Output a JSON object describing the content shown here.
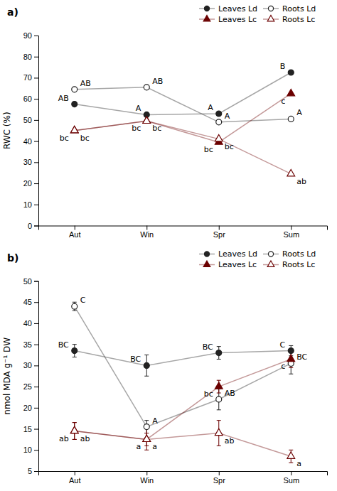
{
  "chart_data": [
    {
      "type": "line",
      "title": "a)",
      "y_label": "RWC (%)",
      "categories": [
        "Aut",
        "Win",
        "Spr",
        "Sum"
      ],
      "ylim": [
        0,
        90
      ],
      "yticks": [
        0,
        10,
        20,
        30,
        40,
        50,
        60,
        70,
        80,
        90
      ],
      "grid": false,
      "legend": "upper right",
      "series": [
        {
          "name": "Leaves Ld",
          "color": "#222222",
          "marker": "circle",
          "values": [
            57.5,
            52.5,
            53.0,
            72.5
          ],
          "labels": [
            "AB",
            "A",
            "A",
            "B"
          ]
        },
        {
          "name": "Roots Ld",
          "color": "#222222",
          "marker": "open-circle",
          "values": [
            64.5,
            65.5,
            49.0,
            50.5
          ],
          "labels": [
            "AB",
            "AB",
            "A",
            "A"
          ]
        },
        {
          "name": "Leaves Lc",
          "color": "#6B0000",
          "marker": "triangle",
          "values": [
            45.0,
            49.5,
            39.5,
            62.5
          ],
          "labels": [
            "bc",
            "bc",
            "bc",
            "c"
          ]
        },
        {
          "name": "Roots Lc",
          "color": "#6B0000",
          "marker": "open-triangle",
          "values": [
            45.0,
            49.5,
            41.0,
            24.5
          ],
          "labels": [
            "bc",
            "bc",
            "bc",
            "ab"
          ]
        }
      ]
    },
    {
      "type": "line",
      "title": "b)",
      "y_label": "nmol MDA g⁻¹ DW",
      "categories": [
        "Aut",
        "Win",
        "Spr",
        "Sum"
      ],
      "ylim": [
        5,
        50
      ],
      "yticks": [
        5,
        10,
        15,
        20,
        25,
        30,
        35,
        40,
        45,
        50
      ],
      "grid": false,
      "legend": "upper right",
      "series": [
        {
          "name": "Leaves Ld",
          "color": "#222222",
          "marker": "circle",
          "values": [
            33.5,
            30.0,
            33.0,
            33.5
          ],
          "errors": [
            1.5,
            2.5,
            1.5,
            1.2
          ],
          "labels": [
            "BC",
            "BC",
            "BC",
            "C"
          ]
        },
        {
          "name": "Roots Ld",
          "color": "#222222",
          "marker": "open-circle",
          "values": [
            44.0,
            15.5,
            22.0,
            30.5
          ],
          "errors": [
            1.0,
            1.5,
            2.5,
            2.5
          ],
          "labels": [
            "C",
            "A",
            "AB",
            "BC"
          ]
        },
        {
          "name": "Leaves Lc",
          "color": "#6B0000",
          "marker": "triangle",
          "values": [
            14.5,
            12.5,
            25.0,
            31.5
          ],
          "errors": [
            2.0,
            1.5,
            1.5,
            2.0
          ],
          "labels": [
            "ab",
            "a",
            "bc",
            "c"
          ]
        },
        {
          "name": "Roots Lc",
          "color": "#6B0000",
          "marker": "open-triangle",
          "values": [
            14.5,
            12.5,
            14.0,
            8.5
          ],
          "errors": [
            2.0,
            2.5,
            3.0,
            1.5
          ],
          "labels": [
            "ab",
            "a",
            "ab",
            "a"
          ]
        }
      ]
    }
  ]
}
